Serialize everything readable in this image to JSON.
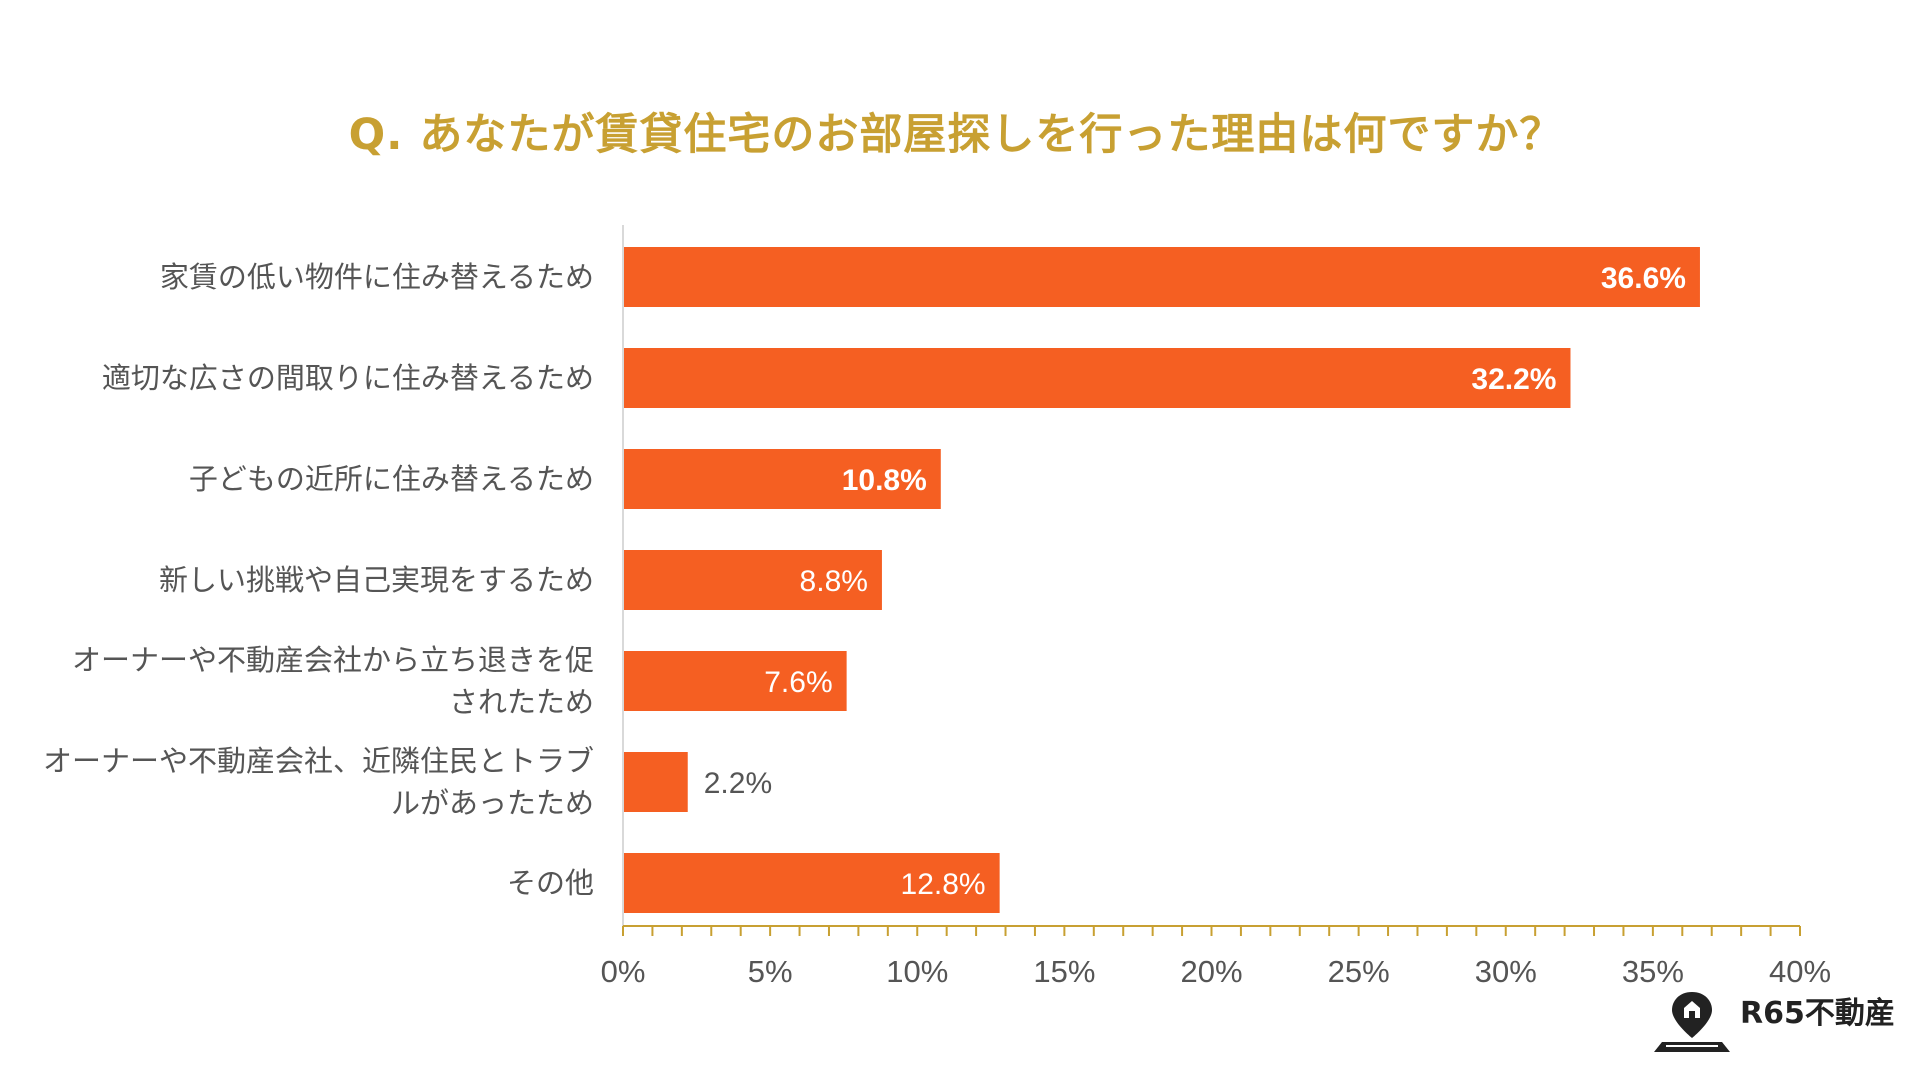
{
  "chart_data": {
    "type": "bar",
    "orientation": "horizontal",
    "title": "Q. あなたが賃貸住宅のお部屋探しを行った理由は何ですか？",
    "categories": [
      [
        "家賃の低い物件に住み替えるため"
      ],
      [
        "適切な広さの間取りに住み替えるため"
      ],
      [
        "子どもの近所に住み替えるため"
      ],
      [
        "新しい挑戦や自己実現をするため"
      ],
      [
        "オーナーや不動産会社から立ち退きを促",
        "されたため"
      ],
      [
        "オーナーや不動産会社、近隣住民とトラブ",
        "ルがあったため"
      ],
      [
        "その他"
      ]
    ],
    "values": [
      36.6,
      32.2,
      10.8,
      8.8,
      7.6,
      2.2,
      12.8
    ],
    "value_labels": [
      "36.6%",
      "32.2%",
      "10.8%",
      "8.8%",
      "7.6%",
      "2.2%",
      "12.8%"
    ],
    "label_bold": [
      true,
      true,
      true,
      false,
      false,
      false,
      false
    ],
    "xlim": [
      0,
      40
    ],
    "xticks": [
      0,
      5,
      10,
      15,
      20,
      25,
      30,
      35,
      40
    ],
    "xtick_labels": [
      "0%",
      "5%",
      "10%",
      "15%",
      "20%",
      "25%",
      "30%",
      "35%",
      "40%"
    ],
    "xlabel": "",
    "ylabel": "",
    "grid": false,
    "legend": "none"
  },
  "colors": {
    "bar": "#F55F22",
    "title": "#C8A032",
    "axis": "#C8A032",
    "label_inside": "#FFFFFF",
    "label_outside": "#555555",
    "text": "#555555"
  },
  "brand": {
    "name": "R65不動産",
    "icon": "map-pin-house-icon"
  }
}
